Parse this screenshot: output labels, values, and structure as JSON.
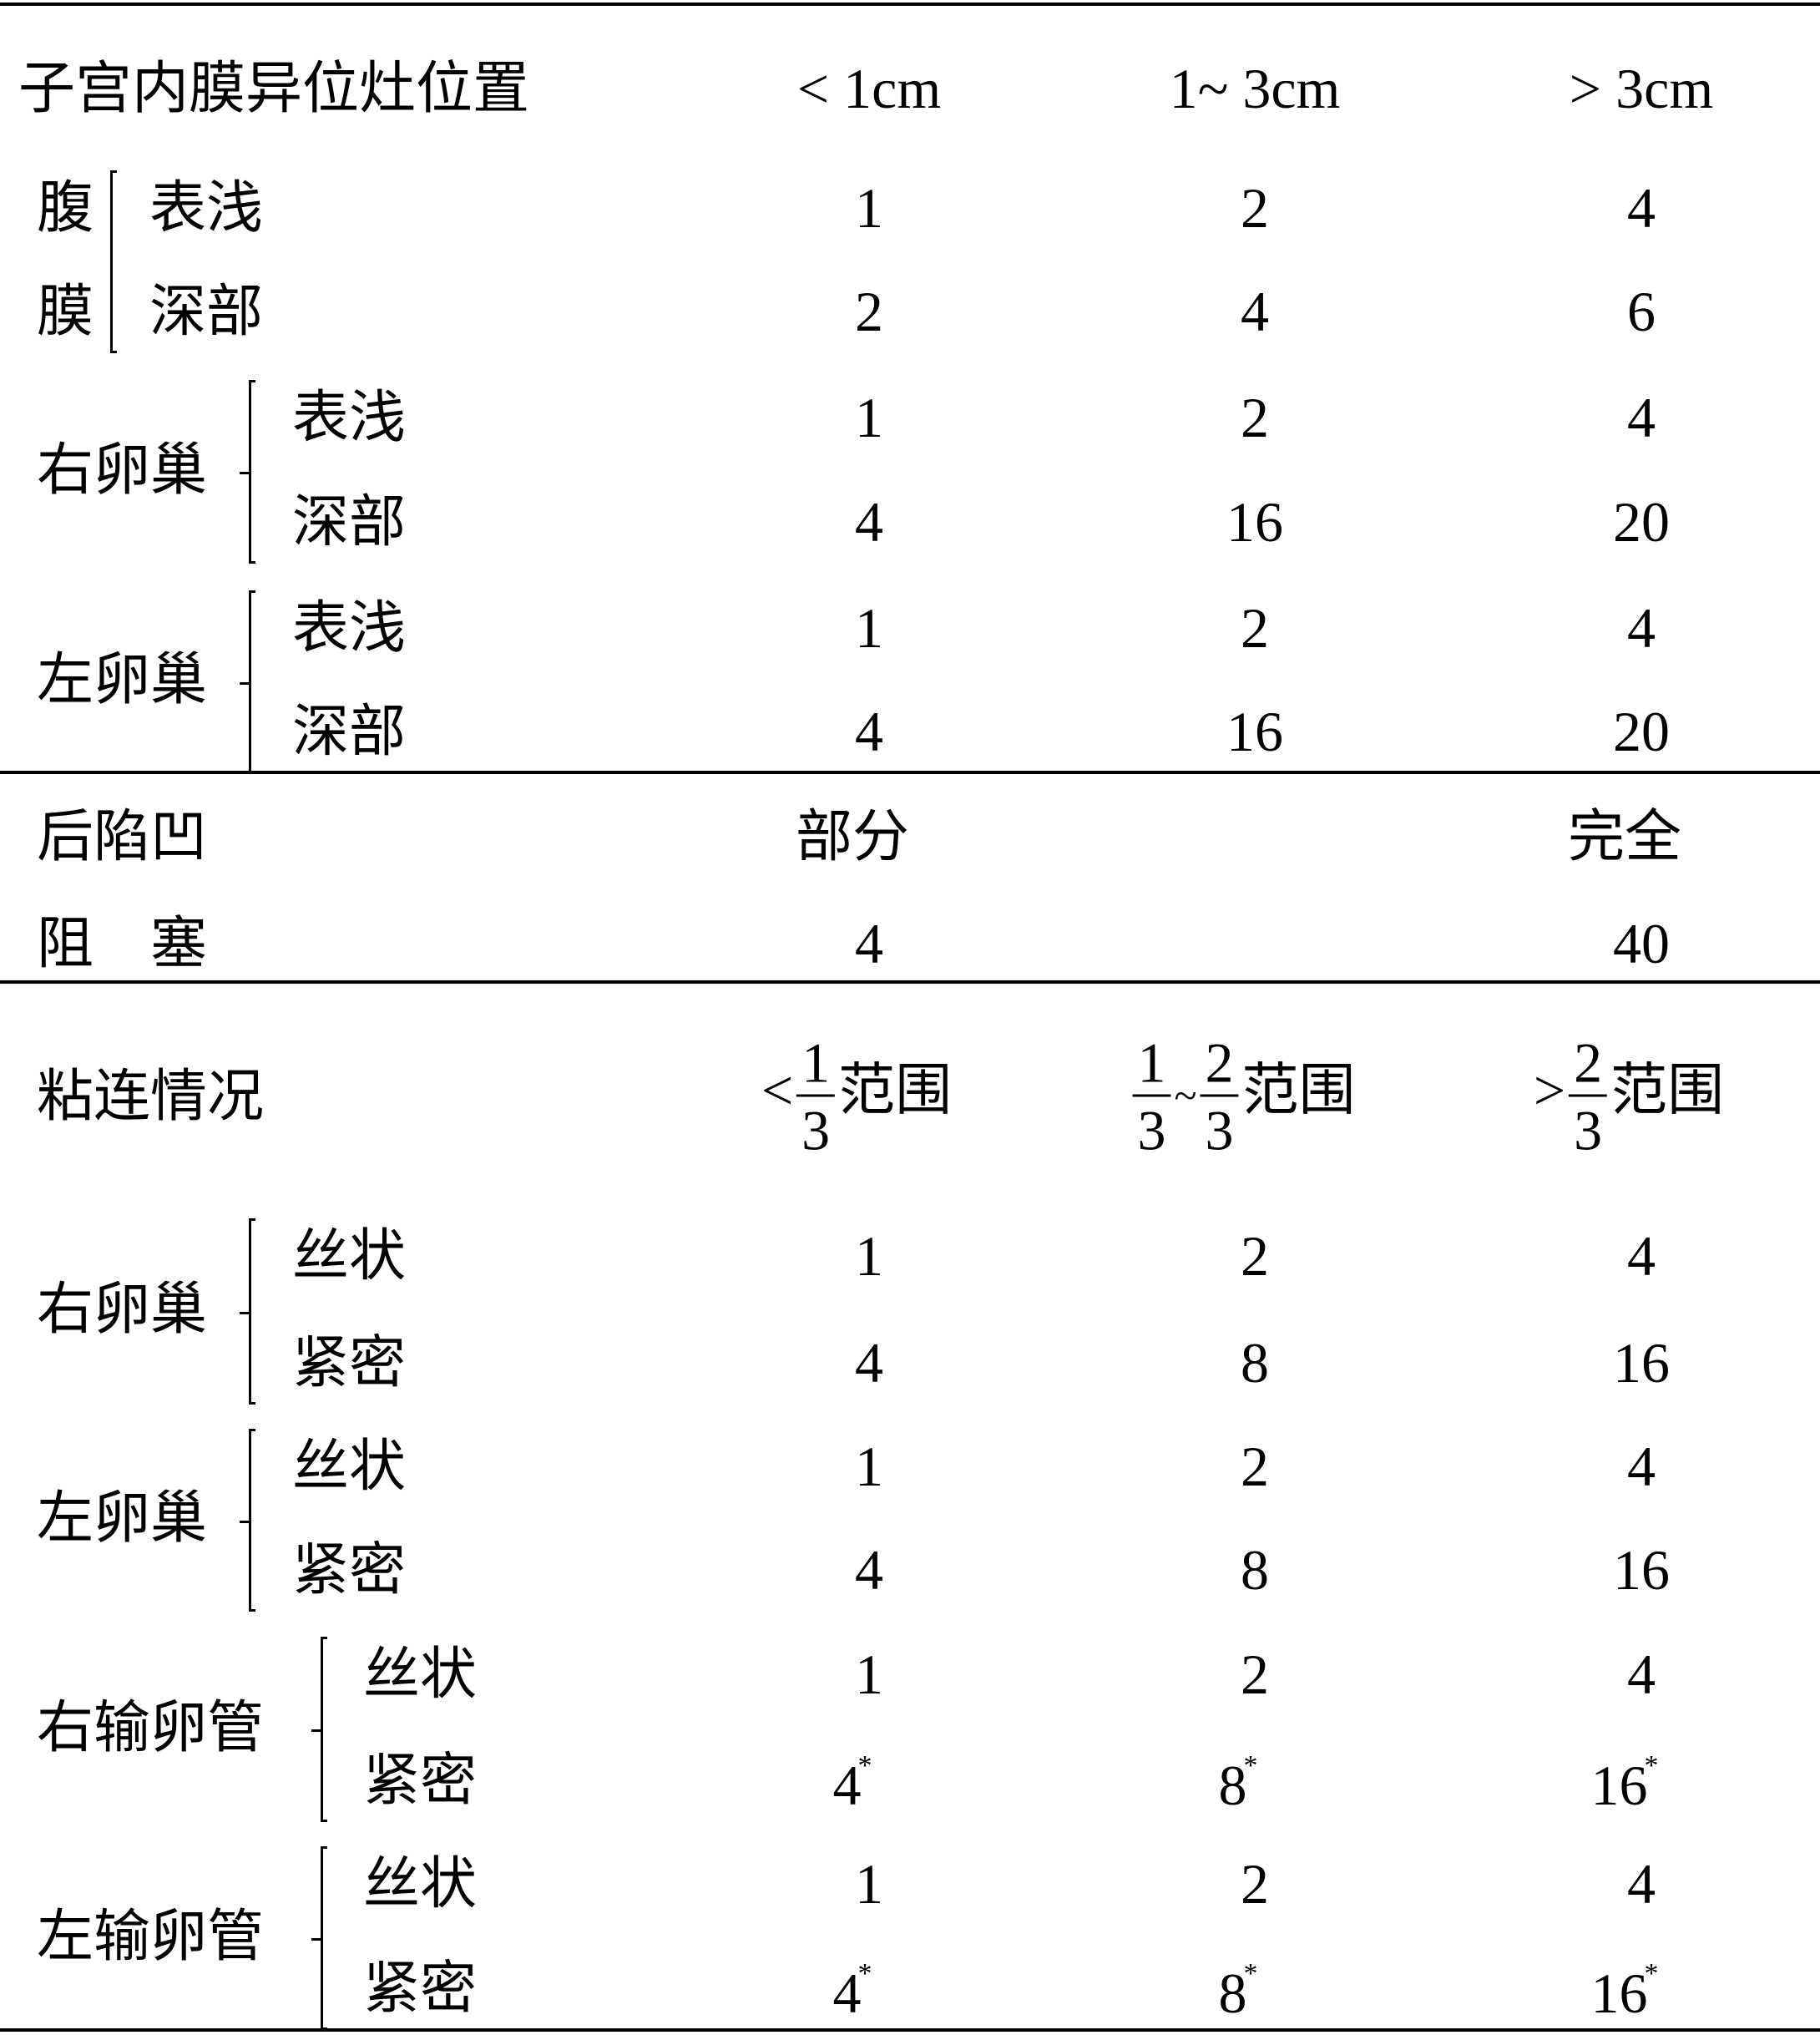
{
  "sections": [
    {
      "header": {
        "label": "子宫内膜异位灶位置",
        "cols": [
          "< 1cm",
          "1~ 3cm",
          "> 3cm"
        ]
      },
      "groups": [
        {
          "name": "腹膜",
          "stacked": true,
          "rows": [
            {
              "sub": "表浅",
              "values": [
                "1",
                "2",
                "4"
              ]
            },
            {
              "sub": "深部",
              "values": [
                "2",
                "4",
                "6"
              ]
            }
          ]
        },
        {
          "name": "右卵巢",
          "rows": [
            {
              "sub": "表浅",
              "values": [
                "1",
                "2",
                "4"
              ]
            },
            {
              "sub": "深部",
              "values": [
                "4",
                "16",
                "20"
              ]
            }
          ]
        },
        {
          "name": "左卵巢",
          "rows": [
            {
              "sub": "表浅",
              "values": [
                "1",
                "2",
                "4"
              ]
            },
            {
              "sub": "深部",
              "values": [
                "4",
                "16",
                "20"
              ]
            }
          ]
        }
      ]
    },
    {
      "header": {
        "label": "后陷凹",
        "cols": [
          "部分",
          "",
          "完全"
        ]
      },
      "plain_rows": [
        {
          "label": "阻　塞",
          "values": [
            "4",
            "",
            "40"
          ]
        }
      ]
    },
    {
      "header": {
        "label": "粘连情况",
        "frac_cols": [
          {
            "prefix": "<",
            "num": "1",
            "den": "3",
            "suffix": "范围"
          },
          {
            "prefix": "",
            "num": "1",
            "den": "3",
            "mid": "~",
            "num2": "2",
            "den2": "3",
            "suffix": "范围"
          },
          {
            "prefix": ">",
            "num": "2",
            "den": "3",
            "suffix": "范围"
          }
        ]
      },
      "groups": [
        {
          "name": "右卵巢",
          "rows": [
            {
              "sub": "丝状",
              "values": [
                "1",
                "2",
                "4"
              ]
            },
            {
              "sub": "紧密",
              "values": [
                "4",
                "8",
                "16"
              ]
            }
          ]
        },
        {
          "name": "左卵巢",
          "rows": [
            {
              "sub": "丝状",
              "values": [
                "1",
                "2",
                "4"
              ]
            },
            {
              "sub": "紧密",
              "values": [
                "4",
                "8",
                "16"
              ]
            }
          ]
        },
        {
          "name": "右输卵管",
          "rows": [
            {
              "sub": "丝状",
              "values": [
                "1",
                "2",
                "4"
              ]
            },
            {
              "sub": "紧密",
              "values": [
                "4",
                "8",
                "16"
              ],
              "mark": "*"
            }
          ]
        },
        {
          "name": "左输卵管",
          "rows": [
            {
              "sub": "丝状",
              "values": [
                "1",
                "2",
                "4"
              ]
            },
            {
              "sub": "紧密",
              "values": [
                "4",
                "8",
                "16"
              ],
              "mark": "*"
            }
          ]
        }
      ]
    }
  ]
}
